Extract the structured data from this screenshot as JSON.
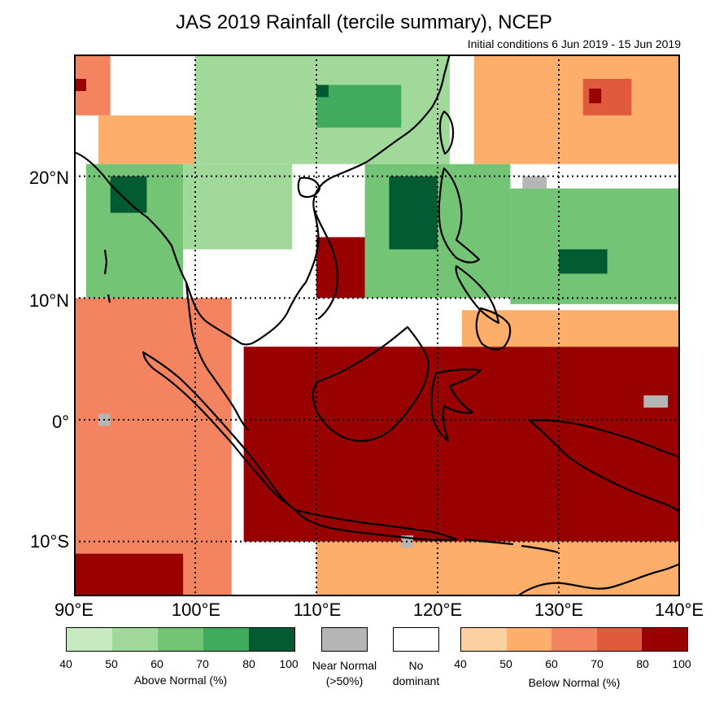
{
  "title": "JAS 2019 Rainfall (tercile summary), NCEP",
  "subtitle": "Initial conditions 6 Jun 2019 - 15 Jun 2019",
  "lat_labels": [
    "20°N",
    "10°N",
    "0°",
    "10°S"
  ],
  "lon_labels": [
    "90°E",
    "100°E",
    "110°E",
    "120°E",
    "130°E",
    "140°E"
  ],
  "colors": {
    "above": [
      "#c7e9c0",
      "#a1d99b",
      "#74c476",
      "#41ab5d",
      "#005a32"
    ],
    "below": [
      "#fdd0a2",
      "#fdae6b",
      "#f4845f",
      "#e05a3c",
      "#990000"
    ],
    "near_normal": "#b5b5b5",
    "no_dominant": "#ffffff"
  },
  "legend": {
    "above_ticks": [
      "40",
      "50",
      "60",
      "70",
      "80",
      "100"
    ],
    "above_label": "Above Normal (%)",
    "near_normal_label_1": "Near Normal",
    "near_normal_label_2": "(>50%)",
    "no_dominant_label_1": "No",
    "no_dominant_label_2": "dominant",
    "below_ticks": [
      "40",
      "50",
      "60",
      "70",
      "80",
      "100"
    ],
    "below_label": "Below Normal (%)"
  },
  "map_data": {
    "lon_range": [
      90,
      140
    ],
    "lat_range": [
      -14.5,
      30
    ],
    "grid_lat": [
      20,
      10,
      0,
      -10
    ],
    "grid_lon": [
      100,
      110,
      120,
      130
    ],
    "regions": [
      {
        "category": "below",
        "level": 2,
        "lon": [
          90,
          103
        ],
        "lat": [
          -14.5,
          10
        ]
      },
      {
        "category": "below",
        "level": 4,
        "lon": [
          90,
          99
        ],
        "lat": [
          -14.5,
          -11
        ]
      },
      {
        "category": "below",
        "level": 4,
        "lon": [
          104,
          140
        ],
        "lat": [
          -10,
          6
        ]
      },
      {
        "category": "below",
        "level": 4,
        "lon": [
          110,
          114
        ],
        "lat": [
          10,
          15
        ]
      },
      {
        "category": "below",
        "level": 1,
        "lon": [
          110,
          140
        ],
        "lat": [
          -14.5,
          -10
        ]
      },
      {
        "category": "below",
        "level": 1,
        "lon": [
          122,
          140
        ],
        "lat": [
          6,
          9
        ]
      },
      {
        "category": "below",
        "level": 1,
        "lon": [
          123,
          140
        ],
        "lat": [
          21,
          30
        ]
      },
      {
        "category": "below",
        "level": 3,
        "lon": [
          132,
          136
        ],
        "lat": [
          25,
          28
        ]
      },
      {
        "category": "below",
        "level": 4,
        "lon": [
          132.5,
          133.5
        ],
        "lat": [
          26,
          27.2
        ]
      },
      {
        "category": "below",
        "level": 2,
        "lon": [
          90,
          93
        ],
        "lat": [
          25,
          30
        ]
      },
      {
        "category": "below",
        "level": 4,
        "lon": [
          90,
          91
        ],
        "lat": [
          27,
          28
        ]
      },
      {
        "category": "below",
        "level": 1,
        "lon": [
          92,
          100
        ],
        "lat": [
          21,
          25
        ]
      },
      {
        "category": "above",
        "level": 1,
        "lon": [
          100,
          121
        ],
        "lat": [
          21,
          30
        ]
      },
      {
        "category": "above",
        "level": 3,
        "lon": [
          110,
          117
        ],
        "lat": [
          24,
          27.5
        ]
      },
      {
        "category": "above",
        "level": 4,
        "lon": [
          110,
          111
        ],
        "lat": [
          26.5,
          27.5
        ]
      },
      {
        "category": "above",
        "level": 2,
        "lon": [
          91,
          99
        ],
        "lat": [
          10,
          21
        ]
      },
      {
        "category": "above",
        "level": 4,
        "lon": [
          93,
          96
        ],
        "lat": [
          17,
          20
        ]
      },
      {
        "category": "above",
        "level": 1,
        "lon": [
          99,
          108
        ],
        "lat": [
          14,
          21
        ]
      },
      {
        "category": "above",
        "level": 2,
        "lon": [
          114,
          126
        ],
        "lat": [
          10,
          21
        ]
      },
      {
        "category": "above",
        "level": 4,
        "lon": [
          116,
          120
        ],
        "lat": [
          14,
          20
        ]
      },
      {
        "category": "above",
        "level": 2,
        "lon": [
          126,
          140
        ],
        "lat": [
          9.5,
          19
        ]
      },
      {
        "category": "above",
        "level": 4,
        "lon": [
          130,
          134
        ],
        "lat": [
          12,
          14
        ]
      },
      {
        "category": "near",
        "level": 0,
        "lon": [
          127,
          129
        ],
        "lat": [
          19,
          20
        ]
      },
      {
        "category": "near",
        "level": 0,
        "lon": [
          117,
          118
        ],
        "lat": [
          -10.5,
          -9.5
        ]
      },
      {
        "category": "near",
        "level": 0,
        "lon": [
          92,
          93
        ],
        "lat": [
          -0.5,
          0.5
        ]
      },
      {
        "category": "near",
        "level": 0,
        "lon": [
          137,
          139
        ],
        "lat": [
          1,
          2
        ]
      }
    ]
  }
}
